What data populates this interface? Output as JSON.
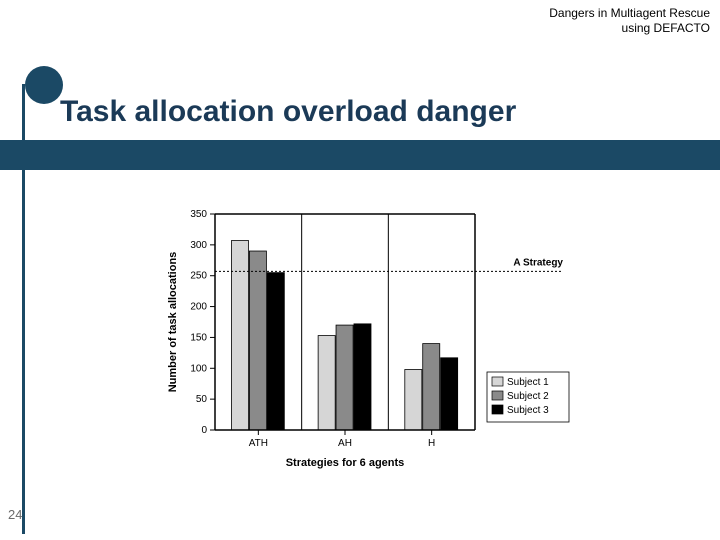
{
  "header": {
    "line1": "Dangers in Multiagent Rescue",
    "line2": "using DEFACTO"
  },
  "title": "Task allocation overload danger",
  "page_number": "24",
  "chart": {
    "type": "grouped-bar",
    "ylabel": "Number of task allocations",
    "xlabel": "Strategies for 6 agents",
    "ylim": [
      0,
      350
    ],
    "ytick_step": 50,
    "categories": [
      "ATH",
      "AH",
      "H"
    ],
    "series": [
      {
        "label": "Subject 1",
        "color": "#d6d6d6",
        "values": [
          307,
          153,
          98
        ]
      },
      {
        "label": "Subject 2",
        "color": "#8a8a8a",
        "values": [
          290,
          170,
          140
        ]
      },
      {
        "label": "Subject 3",
        "color": "#000000",
        "values": [
          255,
          172,
          117
        ]
      }
    ],
    "reference_line": {
      "value": 257,
      "label": "A Strategy",
      "dash": "2 2"
    },
    "plot_bg": "#ffffff",
    "axis_color": "#000000",
    "tick_fontsize": 10,
    "label_fontsize": 11,
    "legend_fontsize": 10,
    "bar_group_width": 0.62,
    "bar_gap": 0.01,
    "axis_linewidth": 1.5
  }
}
